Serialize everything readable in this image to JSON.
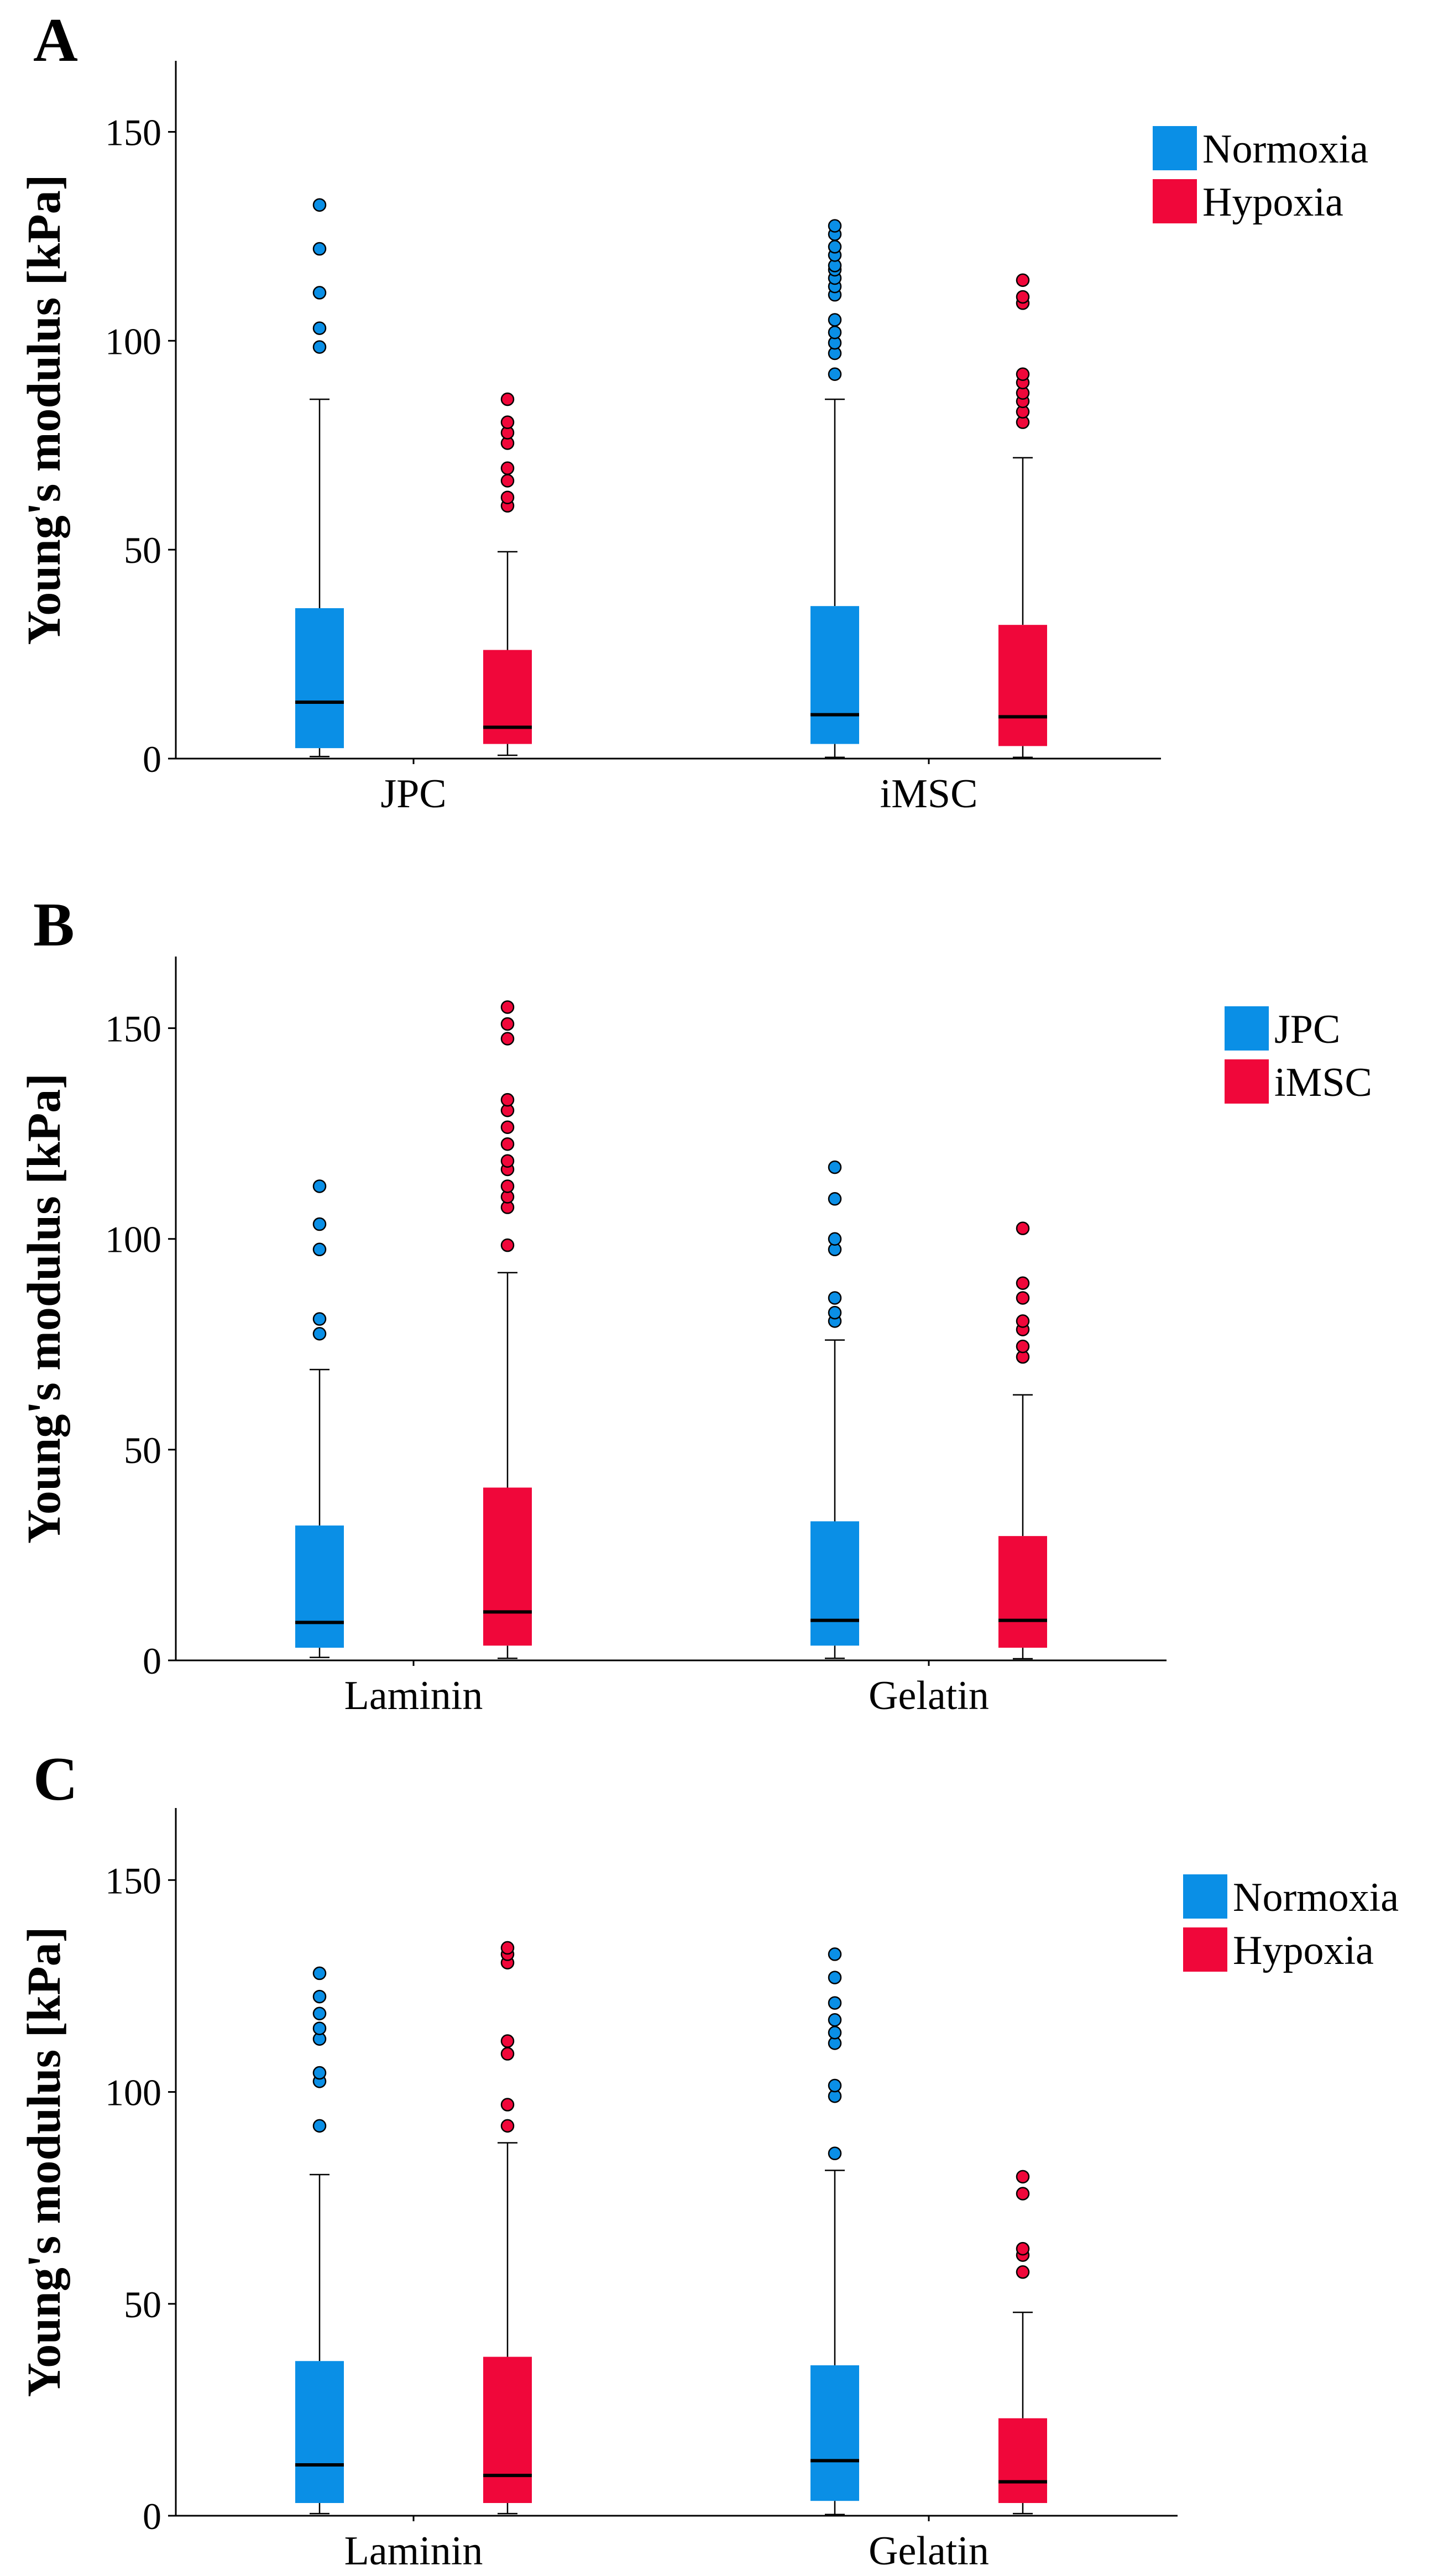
{
  "colors": {
    "normoxia": "#0a8fe6",
    "hypoxia": "#f0073a",
    "jpc": "#0a8fe6",
    "imsc": "#f0073a",
    "axis": "#000000"
  },
  "chart_data": [
    {
      "type": "box",
      "panel_label": "A",
      "ylabel": "Young's modulus [kPa]",
      "ylim": [
        0,
        167
      ],
      "yticks": [
        0,
        50,
        100,
        150
      ],
      "categories": [
        "JPC",
        "iMSC"
      ],
      "legend": {
        "position": "top-right",
        "entries": [
          "Normoxia",
          "Hypoxia"
        ]
      },
      "series": [
        {
          "name": "Normoxia",
          "color_key": "normoxia",
          "boxes": [
            {
              "whisker_low": 0.5,
              "q1": 2.5,
              "median": 13.5,
              "q3": 36,
              "whisker_high": 86,
              "outliers": [
                98.5,
                103,
                111.5,
                122,
                132.5
              ]
            },
            {
              "whisker_low": 0.3,
              "q1": 3.5,
              "median": 10.5,
              "q3": 36.5,
              "whisker_high": 86,
              "outliers": [
                92,
                97,
                99.5,
                102,
                105,
                111,
                113,
                115,
                117,
                118,
                120.5,
                122.5,
                125.5,
                127.5
              ]
            }
          ]
        },
        {
          "name": "Hypoxia",
          "color_key": "hypoxia",
          "boxes": [
            {
              "whisker_low": 0.8,
              "q1": 3.5,
              "median": 7.5,
              "q3": 26,
              "whisker_high": 49.5,
              "outliers": [
                60.5,
                62.5,
                66.5,
                69.5,
                75.5,
                78,
                80.5,
                86
              ]
            },
            {
              "whisker_low": 0.3,
              "q1": 3,
              "median": 10,
              "q3": 32,
              "whisker_high": 72,
              "outliers": [
                80.5,
                83,
                85.5,
                87.5,
                90,
                92,
                109,
                110.5,
                114.5
              ]
            }
          ]
        }
      ]
    },
    {
      "type": "box",
      "panel_label": "B",
      "ylabel": "Young's modulus [kPa]",
      "ylim": [
        0,
        167
      ],
      "yticks": [
        0,
        50,
        100,
        150
      ],
      "categories": [
        "Laminin",
        "Gelatin"
      ],
      "legend": {
        "position": "top-right",
        "entries": [
          "JPC",
          "iMSC"
        ]
      },
      "series": [
        {
          "name": "JPC",
          "color_key": "jpc",
          "boxes": [
            {
              "whisker_low": 0.7,
              "q1": 3,
              "median": 9,
              "q3": 32,
              "whisker_high": 69,
              "outliers": [
                77.5,
                81,
                97.5,
                103.5,
                112.5
              ]
            },
            {
              "whisker_low": 0.5,
              "q1": 3.5,
              "median": 9.5,
              "q3": 33,
              "whisker_high": 76,
              "outliers": [
                80.5,
                82.5,
                86,
                97.5,
                100,
                109.5,
                117
              ]
            }
          ]
        },
        {
          "name": "iMSC",
          "color_key": "imsc",
          "boxes": [
            {
              "whisker_low": 0.5,
              "q1": 3.5,
              "median": 11.5,
              "q3": 41,
              "whisker_high": 92,
              "outliers": [
                98.5,
                107.5,
                110,
                112.5,
                116.5,
                118.5,
                122.5,
                126.5,
                130.5,
                133,
                147.5,
                151,
                155
              ]
            },
            {
              "whisker_low": 0.4,
              "q1": 3,
              "median": 9.5,
              "q3": 29.5,
              "whisker_high": 63,
              "outliers": [
                72,
                74.5,
                78.5,
                80.5,
                86,
                89.5,
                102.5
              ]
            }
          ]
        }
      ]
    },
    {
      "type": "box",
      "panel_label": "C",
      "ylabel": "Young's modulus [kPa]",
      "ylim": [
        0,
        167
      ],
      "yticks": [
        0,
        50,
        100,
        150
      ],
      "categories": [
        "Laminin",
        "Gelatin"
      ],
      "legend": {
        "position": "top-right",
        "entries": [
          "Normoxia",
          "Hypoxia"
        ]
      },
      "series": [
        {
          "name": "Normoxia",
          "color_key": "normoxia",
          "boxes": [
            {
              "whisker_low": 0.5,
              "q1": 3,
              "median": 12,
              "q3": 36.5,
              "whisker_high": 80.5,
              "outliers": [
                92,
                102.5,
                104.5,
                112.5,
                115,
                118.5,
                122.5,
                128
              ]
            },
            {
              "whisker_low": 0.3,
              "q1": 3.5,
              "median": 13,
              "q3": 35.5,
              "whisker_high": 81.5,
              "outliers": [
                85.5,
                99,
                101.5,
                111.5,
                114,
                117,
                121,
                127,
                132.5
              ]
            }
          ]
        },
        {
          "name": "Hypoxia",
          "color_key": "hypoxia",
          "boxes": [
            {
              "whisker_low": 0.5,
              "q1": 3,
              "median": 9.5,
              "q3": 37.5,
              "whisker_high": 88,
              "outliers": [
                92,
                97,
                109,
                112,
                130.5,
                132.5,
                134
              ]
            },
            {
              "whisker_low": 0.5,
              "q1": 3,
              "median": 8,
              "q3": 23,
              "whisker_high": 48,
              "outliers": [
                57.5,
                61.5,
                63,
                76,
                80
              ]
            }
          ]
        }
      ]
    }
  ]
}
